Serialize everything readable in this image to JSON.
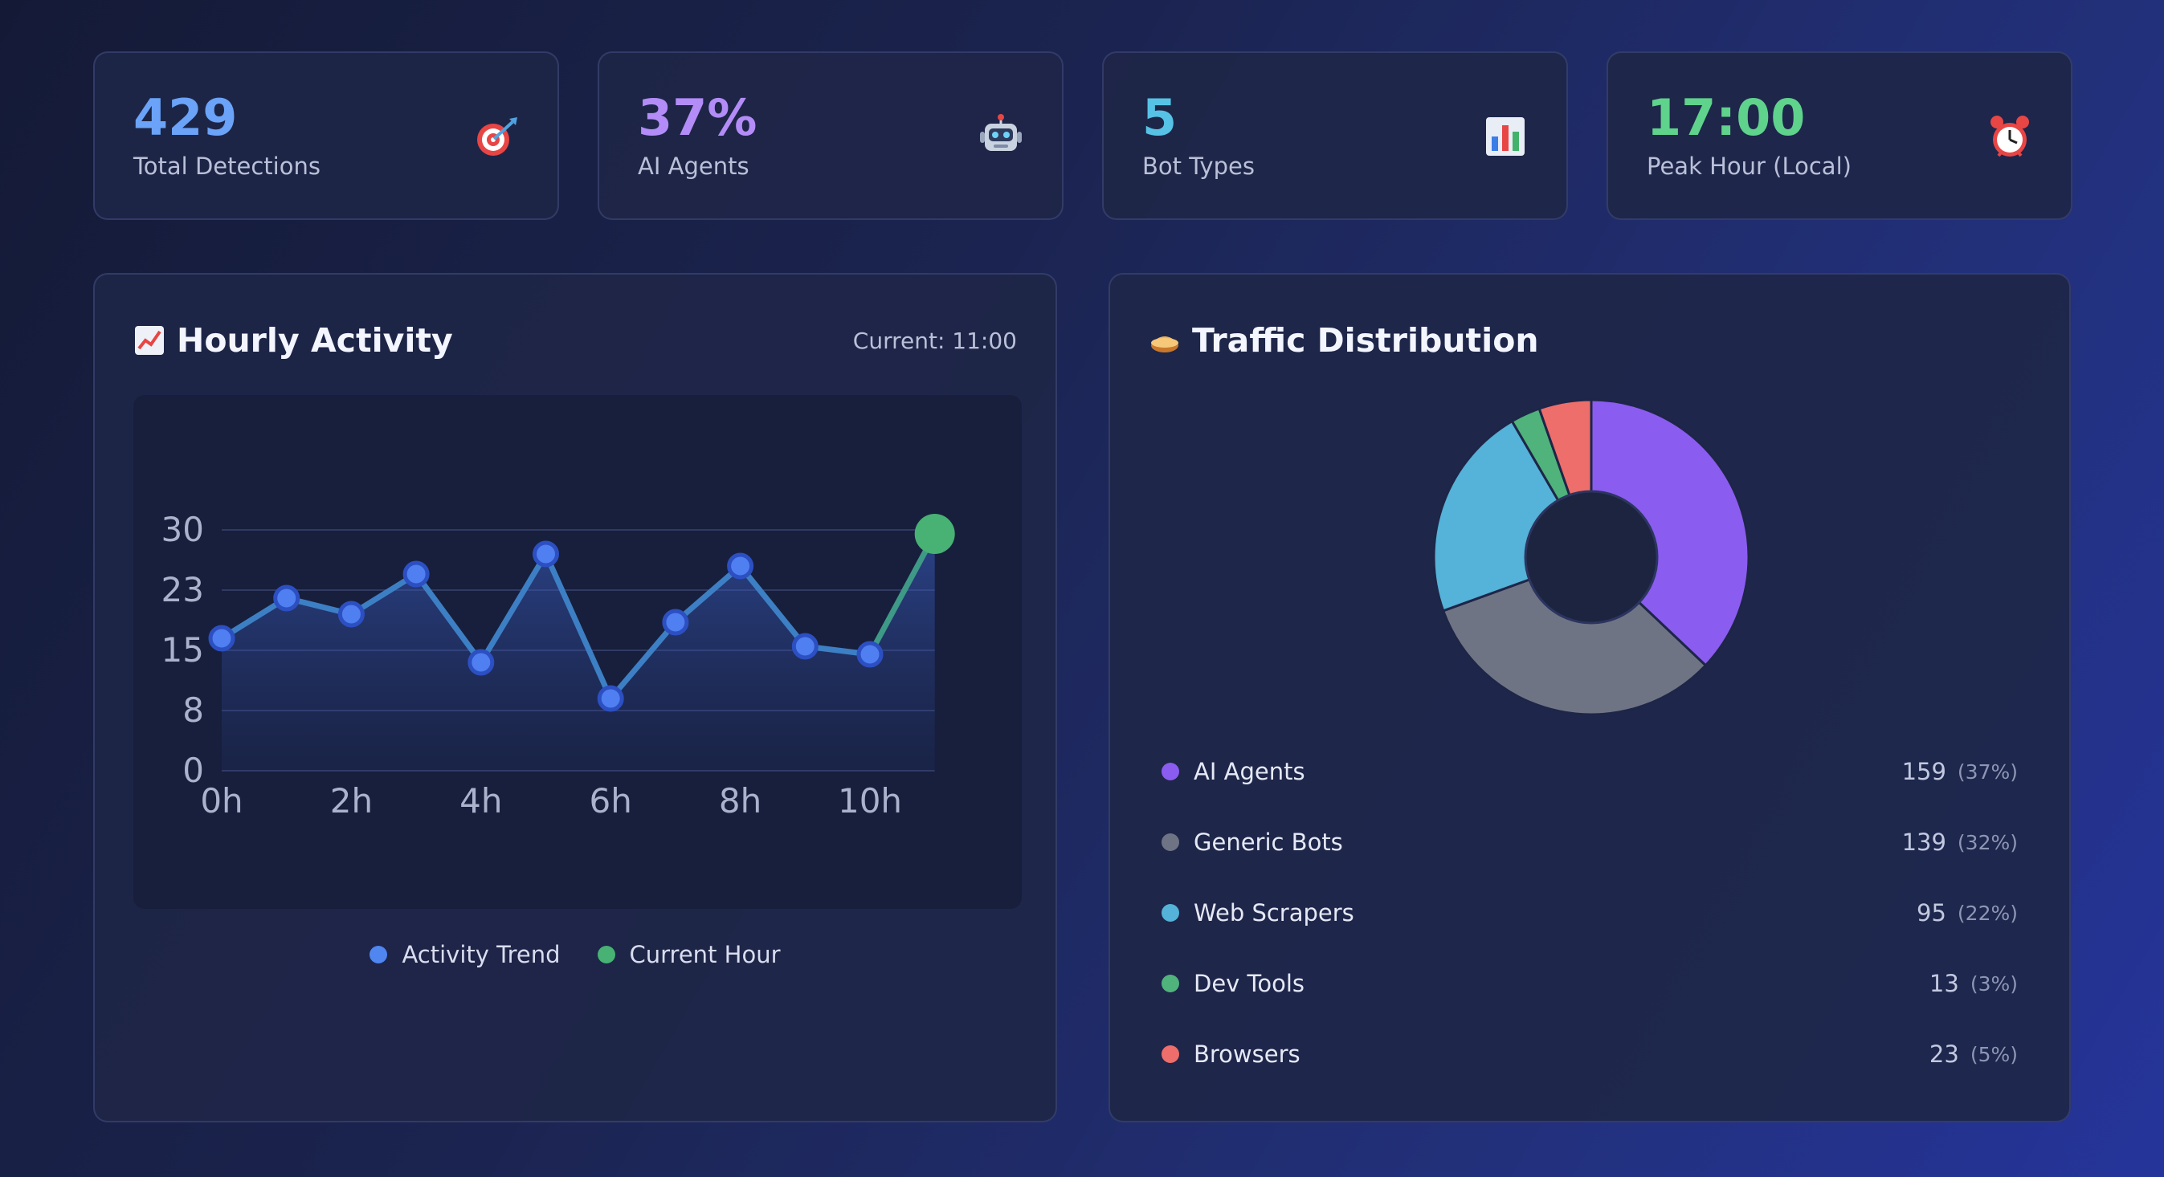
{
  "stats": [
    {
      "value": "429",
      "label": "Total Detections",
      "color": "#6aa3f7",
      "icon": "target-icon"
    },
    {
      "value": "37%",
      "label": "AI Agents",
      "color": "#b38cf7",
      "icon": "robot-icon"
    },
    {
      "value": "5",
      "label": "Bot Types",
      "color": "#56c3e6",
      "icon": "bar-chart-icon"
    },
    {
      "value": "17:00",
      "label": "Peak Hour (Local)",
      "color": "#5fd28c",
      "icon": "alarm-clock-icon"
    }
  ],
  "hourly": {
    "title": "Hourly Activity",
    "current": "Current: 11:00",
    "legend": [
      {
        "label": "Activity Trend",
        "color": "#4f86f0"
      },
      {
        "label": "Current Hour",
        "color": "#48b174"
      }
    ]
  },
  "traffic": {
    "title": "Traffic Distribution",
    "items": [
      {
        "name": "AI Agents",
        "count": "159",
        "pct": "(37%)",
        "color": "#8b5cf0"
      },
      {
        "name": "Generic Bots",
        "count": "139",
        "pct": "(32%)",
        "color": "#6f7485"
      },
      {
        "name": "Web Scrapers",
        "count": "95",
        "pct": "(22%)",
        "color": "#55b2d8"
      },
      {
        "name": "Dev Tools",
        "count": "13",
        "pct": "(3%)",
        "color": "#4fb37b"
      },
      {
        "name": "Browsers",
        "count": "23",
        "pct": "(5%)",
        "color": "#ee6e6b"
      }
    ]
  },
  "chart_data": [
    {
      "type": "line",
      "x": [
        0,
        1,
        2,
        3,
        4,
        5,
        6,
        7,
        8,
        9,
        10,
        11
      ],
      "x_tick_labels": [
        "0h",
        "2h",
        "4h",
        "6h",
        "8h",
        "10h"
      ],
      "y_ticks": [
        "30",
        "23",
        "15",
        "8",
        "0"
      ],
      "ylim": [
        0,
        30
      ],
      "series": [
        {
          "name": "Activity Trend",
          "values": [
            16.5,
            21.5,
            19.5,
            24.5,
            13.5,
            27,
            9,
            18.5,
            25.5,
            15.5,
            14.5,
            29.5
          ],
          "color": "#4f86f0"
        }
      ],
      "highlight": {
        "name": "Current Hour",
        "x": 11,
        "value": 29.5,
        "color": "#48b174"
      },
      "grid": true,
      "legend": "bottom-center"
    },
    {
      "type": "pie",
      "labels": [
        "AI Agents",
        "Generic Bots",
        "Web Scrapers",
        "Dev Tools",
        "Browsers"
      ],
      "values": [
        159,
        139,
        95,
        13,
        23
      ],
      "colors": [
        "#8b5cf0",
        "#6f7485",
        "#55b2d8",
        "#4fb37b",
        "#ee6e6b"
      ],
      "donut": true
    }
  ]
}
